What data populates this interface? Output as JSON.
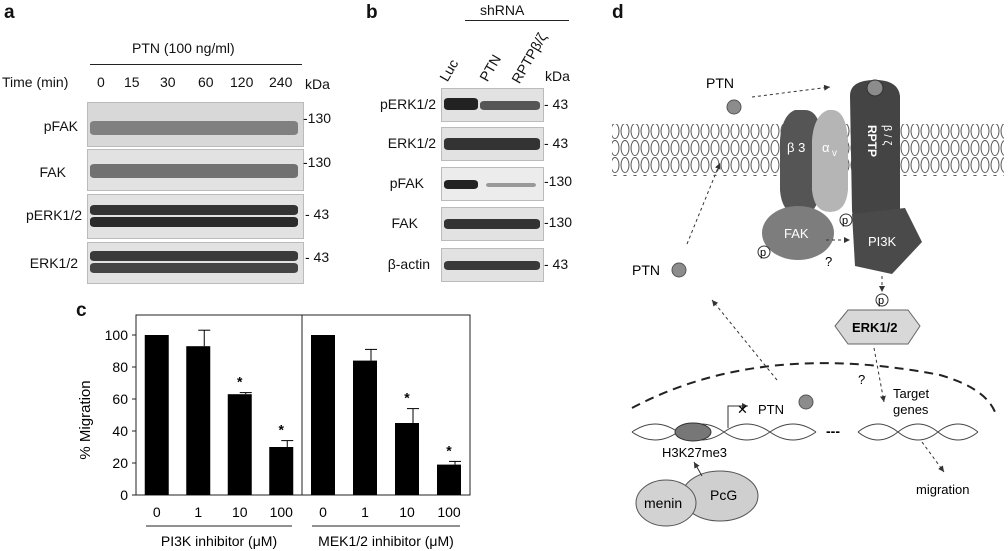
{
  "panel_a": {
    "label": "a",
    "treatment": "PTN (100 ng/ml)",
    "time_label": "Time (min)",
    "times": [
      "0",
      "15",
      "30",
      "60",
      "120",
      "240"
    ],
    "kda_header": "kDa",
    "rows": [
      {
        "name": "pFAK",
        "kda": "-130"
      },
      {
        "name": "FAK",
        "kda": "-130"
      },
      {
        "name": "pERK1/2",
        "kda": "- 43"
      },
      {
        "name": "ERK1/2",
        "kda": "- 43"
      }
    ]
  },
  "panel_b": {
    "label": "b",
    "group": "shRNA",
    "lanes": [
      "Luc",
      "PTN",
      "RPTPβ/ζ"
    ],
    "kda_header": "kDa",
    "rows": [
      {
        "name": "pERK1/2",
        "kda": "- 43"
      },
      {
        "name": "ERK1/2",
        "kda": "- 43"
      },
      {
        "name": "pFAK",
        "kda": "-130"
      },
      {
        "name": "FAK",
        "kda": "-130"
      },
      {
        "name": "β-actin",
        "kda": "- 43"
      }
    ]
  },
  "panel_c": {
    "label": "c",
    "chart_data": {
      "type": "bar",
      "ylabel": "% Migration",
      "ylim": [
        0,
        110
      ],
      "yticks": [
        "0",
        "20",
        "40",
        "60",
        "80",
        "100"
      ],
      "subcharts": [
        {
          "xlabel": "PI3K inhibitor (μM)",
          "categories": [
            "0",
            "1",
            "10",
            "100"
          ],
          "values": [
            100,
            93,
            63,
            30
          ],
          "errors": [
            0,
            10,
            1,
            4
          ],
          "significance": [
            "",
            "",
            "*",
            "*"
          ]
        },
        {
          "xlabel": "MEK1/2 inhibitor (μM)",
          "categories": [
            "0",
            "1",
            "10",
            "100"
          ],
          "values": [
            100,
            84,
            45,
            19
          ],
          "errors": [
            0,
            7,
            9,
            2
          ],
          "significance": [
            "",
            "",
            "*",
            "*"
          ]
        }
      ]
    }
  },
  "panel_d": {
    "label": "d",
    "ptn_top": "PTN",
    "ptn_left": "PTN",
    "ptn_gene": "PTN",
    "beta3": "β 3",
    "alphav": "α",
    "alphav_sub": "v",
    "rptp": "RPTP",
    "rptp_sub": "β / ζ",
    "fak": "FAK",
    "pi3k": "PI3K",
    "erk": "ERK1/2",
    "p": "p",
    "q": "?",
    "target_genes_1": "Target",
    "target_genes_2": "genes",
    "h3k": "H3K27me3",
    "menin": "menin",
    "pcg": "PcG",
    "migration": "migration",
    "dashes": "---"
  }
}
